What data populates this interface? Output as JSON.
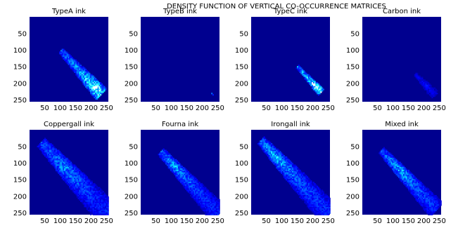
{
  "figure_title": "DENSITY FUNCTION OF VERTICAL CO-OCCURRENCE MATRICES",
  "colors": {
    "background": "#00008f",
    "scale": [
      "#00008f",
      "#0000ff",
      "#0050ff",
      "#00a0ff",
      "#00ffff",
      "#80ffff",
      "#ffffff"
    ]
  },
  "chart_data": [
    {
      "type": "heatmap",
      "title": "TypeA ink",
      "xticks": [
        50,
        100,
        150,
        200,
        250
      ],
      "yticks": [
        50,
        100,
        150,
        200,
        250
      ],
      "xlim": [
        1,
        256
      ],
      "ylim": [
        1,
        256
      ],
      "y_reversed": true,
      "peak": [
        215,
        215
      ],
      "ridge": {
        "from": [
          120,
          125
        ],
        "to": [
          215,
          215
        ]
      },
      "spread": 18,
      "intensity": 0.85
    },
    {
      "type": "heatmap",
      "title": "TypeB ink",
      "xticks": [
        50,
        100,
        150,
        200,
        250
      ],
      "yticks": [
        50,
        100,
        150,
        200,
        250
      ],
      "xlim": [
        1,
        256
      ],
      "ylim": [
        1,
        256
      ],
      "y_reversed": true,
      "peak": [
        232,
        232
      ],
      "ridge": {
        "from": [
          230,
          230
        ],
        "to": [
          234,
          234
        ]
      },
      "spread": 2,
      "intensity": 0.35
    },
    {
      "type": "heatmap",
      "title": "TypeC ink",
      "xticks": [
        50,
        100,
        150,
        200,
        250
      ],
      "yticks": [
        50,
        100,
        150,
        200,
        250
      ],
      "xlim": [
        1,
        256
      ],
      "ylim": [
        1,
        256
      ],
      "y_reversed": true,
      "peak": [
        215,
        215
      ],
      "ridge": {
        "from": [
          160,
          160
        ],
        "to": [
          218,
          218
        ]
      },
      "spread": 10,
      "intensity": 1.0
    },
    {
      "type": "heatmap",
      "title": "Carbon ink",
      "xticks": [
        50,
        100,
        150,
        200,
        250
      ],
      "yticks": [
        50,
        100,
        150,
        200,
        250
      ],
      "xlim": [
        1,
        256
      ],
      "ylim": [
        1,
        256
      ],
      "y_reversed": true,
      "peak": [
        205,
        205
      ],
      "ridge": {
        "from": [
          185,
          185
        ],
        "to": [
          225,
          225
        ]
      },
      "spread": 12,
      "intensity": 0.18
    },
    {
      "type": "heatmap",
      "title": "Coppergall ink",
      "xticks": [
        50,
        100,
        150,
        200,
        250
      ],
      "yticks": [
        50,
        100,
        150,
        200,
        250
      ],
      "xlim": [
        1,
        256
      ],
      "ylim": [
        1,
        256
      ],
      "y_reversed": true,
      "peak": [
        110,
        110
      ],
      "ridge": {
        "from": [
          70,
          70
        ],
        "to": [
          235,
          235
        ]
      },
      "spread": 32,
      "intensity": 0.45
    },
    {
      "type": "heatmap",
      "title": "Fourna ink",
      "xticks": [
        50,
        100,
        150,
        200,
        250
      ],
      "yticks": [
        50,
        100,
        150,
        200,
        250
      ],
      "xlim": [
        1,
        256
      ],
      "ylim": [
        1,
        256
      ],
      "y_reversed": true,
      "peak": [
        112,
        112
      ],
      "ridge": {
        "from": [
          90,
          90
        ],
        "to": [
          230,
          230
        ]
      },
      "spread": 24,
      "intensity": 0.5
    },
    {
      "type": "heatmap",
      "title": "Irongall ink",
      "xticks": [
        50,
        100,
        150,
        200,
        250
      ],
      "yticks": [
        50,
        100,
        150,
        200,
        250
      ],
      "xlim": [
        1,
        256
      ],
      "ylim": [
        1,
        256
      ],
      "y_reversed": true,
      "peak": [
        85,
        85
      ],
      "ridge": {
        "from": [
          60,
          60
        ],
        "to": [
          225,
          225
        ]
      },
      "spread": 28,
      "intensity": 0.55
    },
    {
      "type": "heatmap",
      "title": "Mixed ink",
      "xticks": [
        50,
        100,
        150,
        200,
        250
      ],
      "yticks": [
        50,
        100,
        150,
        200,
        250
      ],
      "xlim": [
        1,
        256
      ],
      "ylim": [
        1,
        256
      ],
      "y_reversed": true,
      "peak": [
        125,
        125
      ],
      "ridge": {
        "from": [
          85,
          85
        ],
        "to": [
          220,
          220
        ]
      },
      "spread": 22,
      "intensity": 0.55
    }
  ]
}
